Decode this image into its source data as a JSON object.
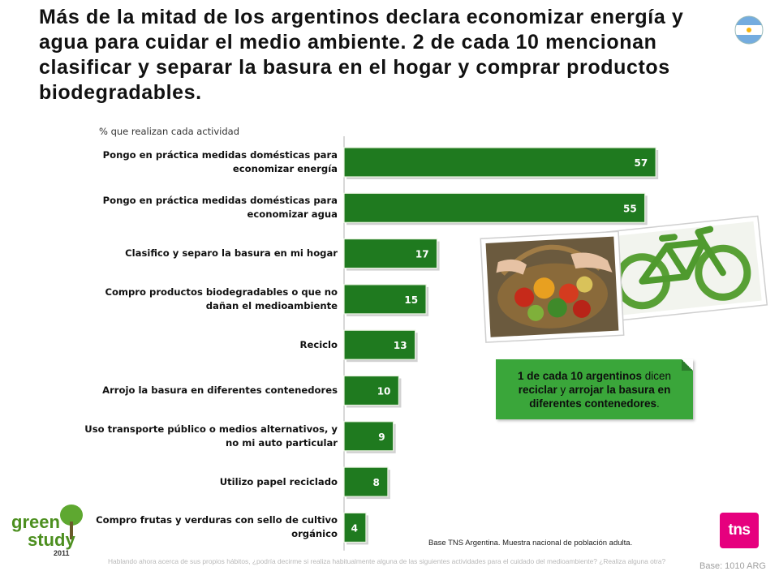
{
  "title": "Más de la mitad de los argentinos declara economizar energía y agua para cuidar el medio ambiente. 2 de cada 10 mencionan clasificar y separar la basura en el hogar y comprar productos biodegradables.",
  "chart_data": {
    "type": "bar",
    "orientation": "horizontal",
    "subtitle": "% que realizan cada actividad",
    "categories": [
      "Pongo en práctica medidas domésticas para economizar energía",
      "Pongo en práctica medidas domésticas para economizar agua",
      "Clasifico y separo la basura en mi hogar",
      "Compro productos biodegradables o que no dañan el medioambiente",
      "Reciclo",
      "Arrojo la basura en diferentes contenedores",
      "Uso transporte público o medios alternativos, y no mi auto particular",
      "Utilizo papel reciclado",
      "Compro frutas y verduras con sello de cultivo orgánico"
    ],
    "values": [
      57,
      55,
      17,
      15,
      13,
      10,
      9,
      8,
      4
    ],
    "xlim": [
      0,
      100
    ],
    "bar_color": "#1f7a1f"
  },
  "callout": {
    "bold1": "1 de cada 10 argentinos",
    "text1": " dicen ",
    "bold2": "reciclar",
    "text2": " y ",
    "bold3": "arrojar la basura en diferentes contenedores",
    "text3": "."
  },
  "base_note": "Base TNS Argentina. Muestra nacional de población adulta.",
  "question": "Hablando ahora acerca de sus propios hábitos, ¿podría decirme si realiza habitualmente alguna de las siguientes actividades para el cuidado del medioambiente? ¿Realiza alguna otra?",
  "base_count": "Base: 1010 ARG",
  "logo_green": {
    "word1": "green",
    "word2": "study",
    "year": "2011"
  },
  "logo_tns": "tns",
  "colors": {
    "bar": "#1f7a1f",
    "callout": "#3aa63a",
    "tns": "#e6007e"
  }
}
